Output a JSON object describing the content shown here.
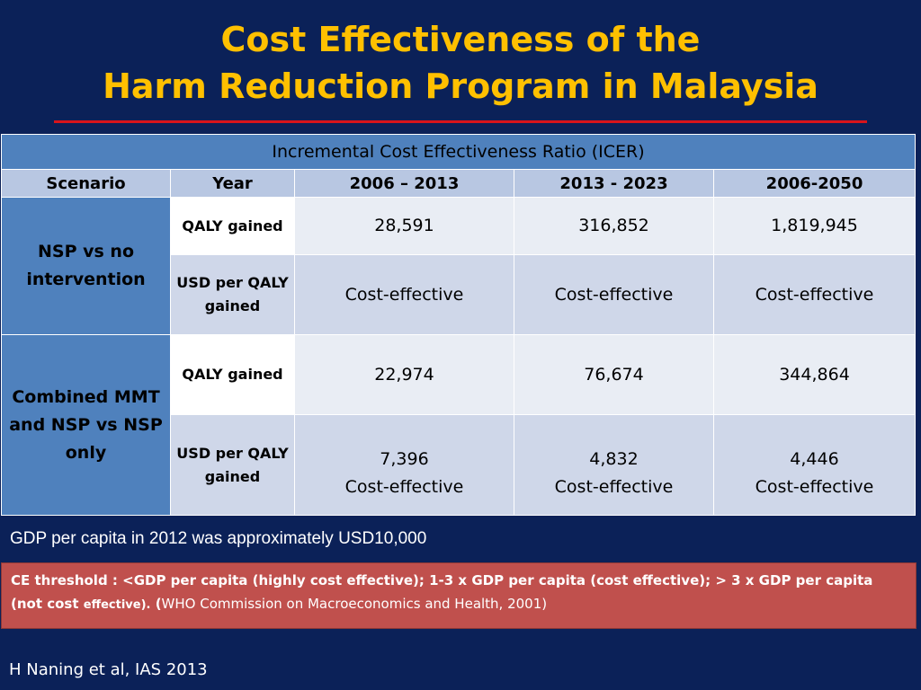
{
  "slide": {
    "title_line1": "Cost Effectiveness of the",
    "title_line2": "Harm Reduction Program in Malaysia"
  },
  "table": {
    "caption": "Incremental Cost Effectiveness Ratio (ICER)",
    "headers": [
      "Scenario",
      "Year",
      "2006 – 2013",
      "2013 - 2023",
      "2006-2050"
    ],
    "groups": [
      {
        "scenario": "NSP vs no intervention",
        "rows": [
          {
            "label": "QALY gained",
            "values": [
              "28,591",
              "316,852",
              "1,819,945"
            ]
          },
          {
            "label": "USD per QALY gained",
            "values": [
              "Cost-effective",
              "Cost-effective",
              "Cost-effective"
            ]
          }
        ]
      },
      {
        "scenario": "Combined MMT and NSP vs NSP only",
        "rows": [
          {
            "label": "QALY gained",
            "values": [
              "22,974",
              "76,674",
              "344,864"
            ]
          },
          {
            "label": "USD per QALY gained",
            "values": [
              "7,396",
              "4,832",
              "4,446"
            ],
            "notes": [
              "Cost-effective",
              "Cost-effective",
              "Cost-effective"
            ]
          }
        ]
      }
    ]
  },
  "footnote": {
    "gdp": "GDP per capita in 2012 was approximately USD10,000",
    "ce_threshold_main": "CE threshold : <GDP per capita (highly cost effective);  1-3 x GDP per capita (cost effective);  > 3 x GDP per capita (not cost ",
    "ce_threshold_small": "effective).",
    "ce_threshold_source_open": "  (",
    "ce_threshold_source": "WHO Commission on Macroeconomics and Health, 2001)"
  },
  "citation": "H Naning et al, IAS 2013"
}
